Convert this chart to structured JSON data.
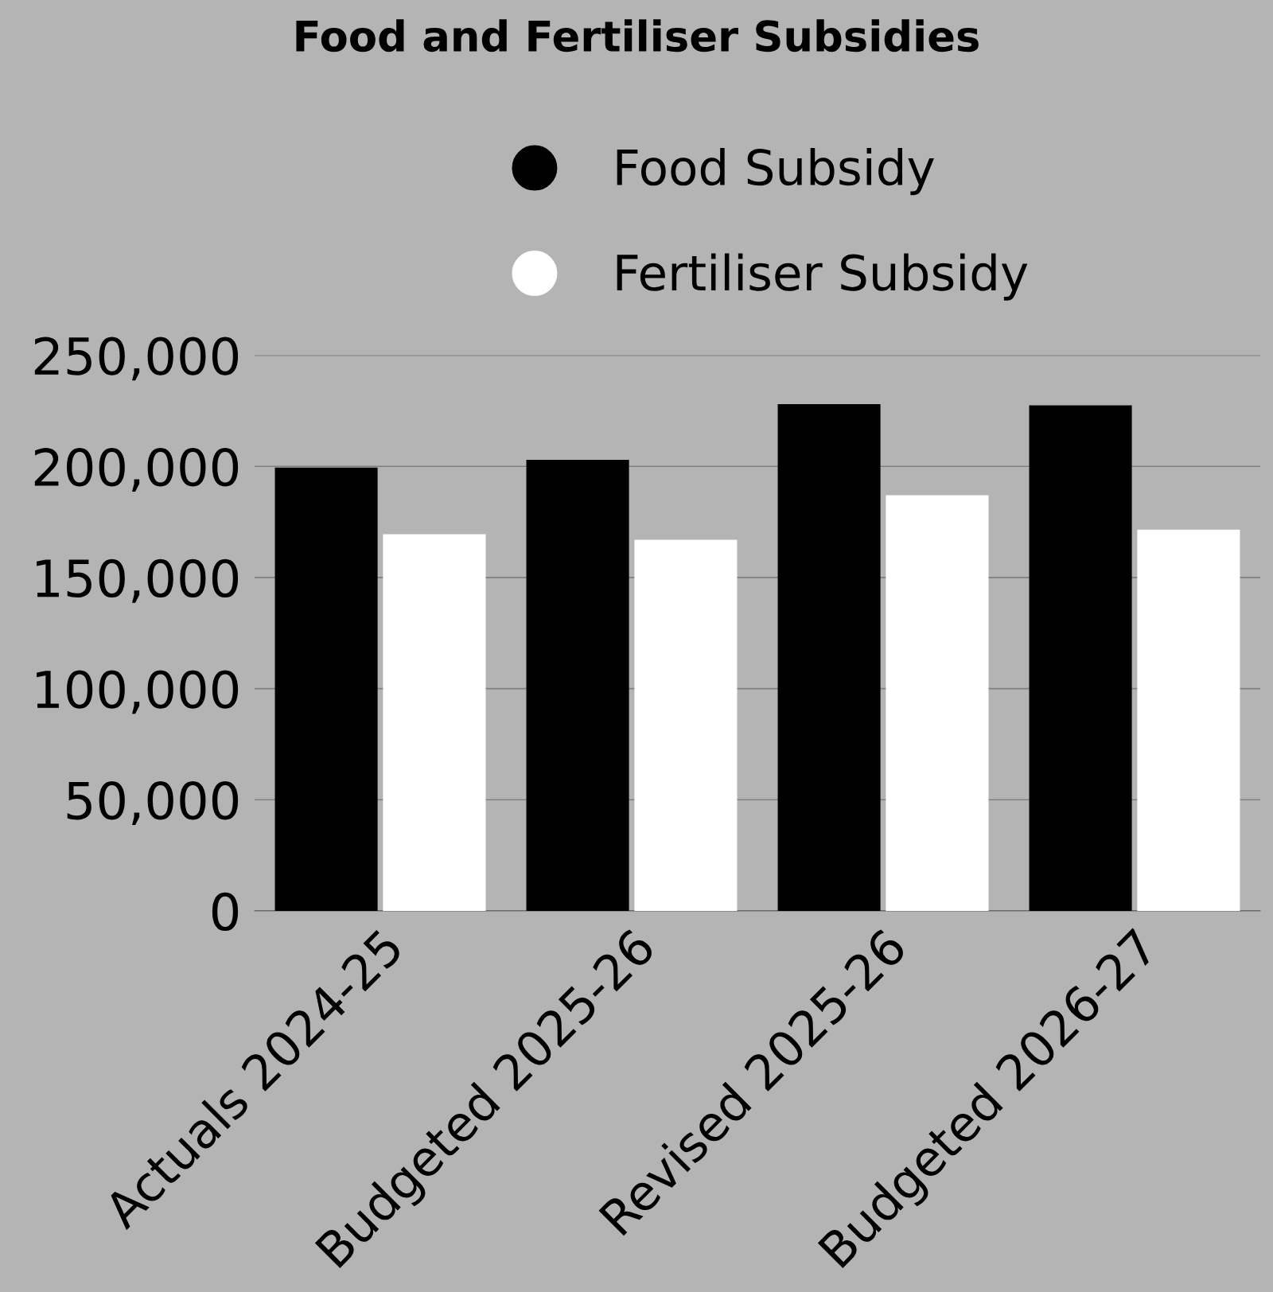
{
  "chart_data": {
    "type": "bar",
    "title": "Food and Fertiliser Subsidies",
    "categories": [
      "Actuals 2024-25",
      "Budgeted 2025-26",
      "Revised 2025-26",
      "Budgeted 2026-27"
    ],
    "series": [
      {
        "name": "Food Subsidy",
        "color": "#000000",
        "values": [
          199500,
          203000,
          228000,
          227500
        ]
      },
      {
        "name": "Fertiliser Subsidy",
        "color": "#ffffff",
        "values": [
          169500,
          167000,
          187000,
          171500
        ]
      }
    ],
    "ylim": [
      0,
      250000
    ],
    "yticks": [
      {
        "value": 0,
        "label": "0"
      },
      {
        "value": 50000,
        "label": "50,000"
      },
      {
        "value": 100000,
        "label": "100,000"
      },
      {
        "value": 150000,
        "label": "150,000"
      },
      {
        "value": 200000,
        "label": "200,000"
      },
      {
        "value": 250000,
        "label": "250,000"
      }
    ],
    "grid": "y",
    "legend": "top"
  }
}
